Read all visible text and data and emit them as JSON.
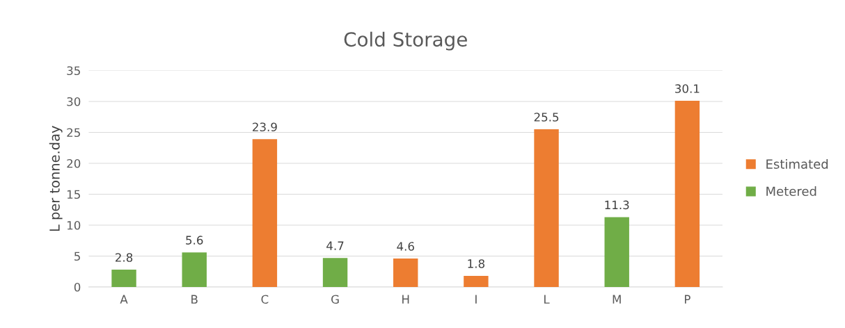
{
  "chart_data": {
    "type": "bar",
    "title": "Cold Storage",
    "ylabel": "L per tonne.day",
    "categories": [
      "A",
      "B",
      "C",
      "G",
      "H",
      "I",
      "L",
      "M",
      "P"
    ],
    "series": [
      {
        "name": "Estimated",
        "color": "#ed7d31",
        "values": [
          null,
          null,
          23.9,
          null,
          4.6,
          1.8,
          25.5,
          null,
          30.1
        ]
      },
      {
        "name": "Metered",
        "color": "#70ad47",
        "values": [
          2.8,
          5.6,
          null,
          4.7,
          null,
          null,
          null,
          11.3,
          null
        ]
      }
    ],
    "ylim": [
      0,
      35
    ],
    "yticks": [
      0,
      5,
      10,
      15,
      20,
      25,
      30,
      35
    ],
    "grid": "y",
    "legend": "right",
    "data_labels": true
  }
}
